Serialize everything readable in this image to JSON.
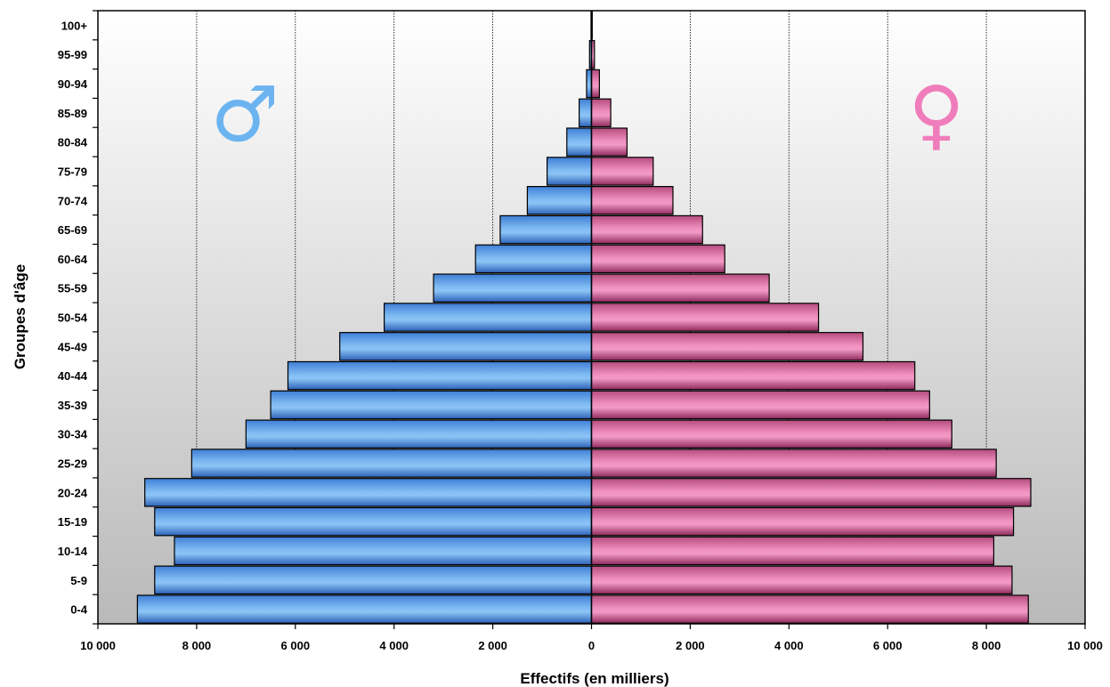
{
  "chart_data": {
    "type": "bar",
    "orientation": "horizontal",
    "subtype": "population-pyramid",
    "xlabel": "Effectifs (en milliers)",
    "ylabel": "Groupes d'âge",
    "xlim": [
      -10000,
      10000
    ],
    "x_tick_values": [
      -10000,
      -8000,
      -6000,
      -4000,
      -2000,
      0,
      2000,
      4000,
      6000,
      8000,
      10000
    ],
    "x_tick_labels": [
      "10 000",
      "8 000",
      "6 000",
      "4 000",
      "2 000",
      "0",
      "2 000",
      "4 000",
      "6 000",
      "8 000",
      "10 000"
    ],
    "grid": "vertical",
    "categories": [
      "0-4",
      "5-9",
      "10-14",
      "15-19",
      "20-24",
      "25-29",
      "30-34",
      "35-39",
      "40-44",
      "45-49",
      "50-54",
      "55-59",
      "60-64",
      "65-69",
      "70-74",
      "75-79",
      "80-84",
      "85-89",
      "90-94",
      "95-99",
      "100+"
    ],
    "series": [
      {
        "symbol": "♂",
        "color": "#6fa8e8",
        "values": [
          9200,
          8850,
          8450,
          8850,
          9050,
          8100,
          7000,
          6500,
          6150,
          5100,
          4200,
          3200,
          2350,
          1850,
          1300,
          900,
          500,
          250,
          100,
          40,
          10
        ]
      },
      {
        "symbol": "♀",
        "color": "#e483b1",
        "values": [
          8850,
          8520,
          8150,
          8550,
          8900,
          8200,
          7300,
          6850,
          6550,
          5500,
          4600,
          3600,
          2700,
          2250,
          1650,
          1250,
          720,
          390,
          160,
          60,
          15
        ]
      }
    ]
  }
}
